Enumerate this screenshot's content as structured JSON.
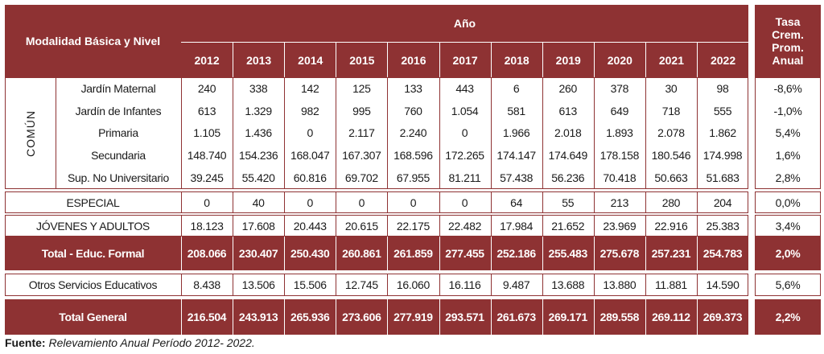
{
  "header": {
    "row_label": "Modalidad Básica y Nivel",
    "year_group": "Año",
    "rate_label_lines": [
      "Tasa",
      "Crem.",
      "Prom.",
      "Anual"
    ]
  },
  "years": [
    "2012",
    "2013",
    "2014",
    "2015",
    "2016",
    "2017",
    "2018",
    "2019",
    "2020",
    "2021",
    "2022"
  ],
  "comun_label": "COMÚN",
  "comun_rows": [
    {
      "label": "Jardín Maternal",
      "values": [
        "240",
        "338",
        "142",
        "125",
        "133",
        "443",
        "6",
        "260",
        "378",
        "30",
        "98"
      ],
      "rate": "-8,6%"
    },
    {
      "label": "Jardín de Infantes",
      "values": [
        "613",
        "1.329",
        "982",
        "995",
        "760",
        "1.054",
        "581",
        "613",
        "649",
        "718",
        "555"
      ],
      "rate": "-1,0%"
    },
    {
      "label": "Primaria",
      "values": [
        "1.105",
        "1.436",
        "0",
        "2.117",
        "2.240",
        "0",
        "1.966",
        "2.018",
        "1.893",
        "2.078",
        "1.862"
      ],
      "rate": "5,4%"
    },
    {
      "label": "Secundaria",
      "values": [
        "148.740",
        "154.236",
        "168.047",
        "167.307",
        "168.596",
        "172.265",
        "174.147",
        "174.649",
        "178.158",
        "180.546",
        "174.998"
      ],
      "rate": "1,6%"
    },
    {
      "label": "Sup. No Universitario",
      "values": [
        "39.245",
        "55.420",
        "60.816",
        "69.702",
        "67.955",
        "81.211",
        "57.438",
        "56.236",
        "70.418",
        "50.663",
        "51.683"
      ],
      "rate": "2,8%"
    }
  ],
  "especial": {
    "label": "ESPECIAL",
    "values": [
      "0",
      "40",
      "0",
      "0",
      "0",
      "0",
      "64",
      "55",
      "213",
      "280",
      "204"
    ],
    "rate": "0,0%"
  },
  "jovenes": {
    "label": "JÓVENES Y ADULTOS",
    "values": [
      "18.123",
      "17.608",
      "20.443",
      "20.615",
      "22.175",
      "22.482",
      "17.984",
      "21.652",
      "23.969",
      "22.916",
      "25.383"
    ],
    "rate": "3,4%"
  },
  "total_formal": {
    "label": "Total - Educ. Formal",
    "values": [
      "208.066",
      "230.407",
      "250.430",
      "260.861",
      "261.859",
      "277.455",
      "252.186",
      "255.483",
      "275.678",
      "257.231",
      "254.783"
    ],
    "rate": "2,0%"
  },
  "otros": {
    "label": "Otros Servicios Educativos",
    "values": [
      "8.438",
      "13.506",
      "15.506",
      "12.745",
      "16.060",
      "16.116",
      "9.487",
      "13.688",
      "13.880",
      "11.881",
      "14.590"
    ],
    "rate": "5,6%"
  },
  "total_general": {
    "label": "Total General",
    "values": [
      "216.504",
      "243.913",
      "265.936",
      "273.606",
      "277.919",
      "293.571",
      "261.673",
      "269.171",
      "289.558",
      "269.112",
      "269.373"
    ],
    "rate": "2,2%"
  },
  "footer": {
    "source_label": "Fuente:",
    "source_text": "Relevamiento Anual Período 2012- 2022."
  }
}
